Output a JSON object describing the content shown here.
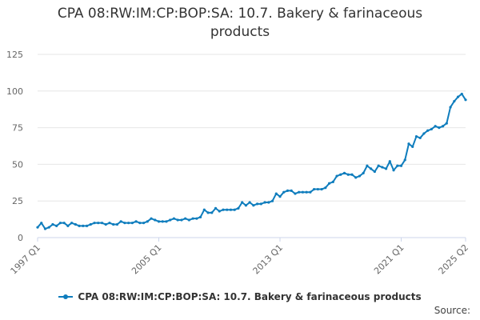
{
  "chart_data": {
    "type": "line",
    "title_line1": "CPA 08:RW:IM:CP:BOP:SA: 10.7. Bakery & farinaceous",
    "title_line2": "products",
    "xlabel": "",
    "ylabel": "",
    "ylim": [
      0,
      125
    ],
    "y_ticks": [
      0,
      25,
      50,
      75,
      100,
      125
    ],
    "x_ticks": [
      {
        "index": 0,
        "label": "1997 Q1"
      },
      {
        "index": 32,
        "label": "2005 Q1"
      },
      {
        "index": 64,
        "label": "2013 Q1"
      },
      {
        "index": 96,
        "label": "2021 Q1"
      },
      {
        "index": 113,
        "label": "2025 Q2"
      }
    ],
    "grid": true,
    "legend_position": "bottom",
    "source_label": "Source:",
    "color": "#0f7dbd",
    "series": [
      {
        "name": "CPA 08:RW:IM:CP:BOP:SA: 10.7. Bakery & farinaceous products",
        "values": [
          7,
          10,
          6,
          7,
          9,
          8,
          10,
          10,
          8,
          10,
          9,
          8,
          8,
          8,
          9,
          10,
          10,
          10,
          9,
          10,
          9,
          9,
          11,
          10,
          10,
          10,
          11,
          10,
          10,
          11,
          13,
          12,
          11,
          11,
          11,
          12,
          13,
          12,
          12,
          13,
          12,
          13,
          13,
          14,
          19,
          17,
          17,
          20,
          18,
          19,
          19,
          19,
          19,
          20,
          24,
          22,
          24,
          22,
          23,
          23,
          24,
          24,
          25,
          30,
          28,
          31,
          32,
          32,
          30,
          31,
          31,
          31,
          31,
          33,
          33,
          33,
          34,
          37,
          38,
          42,
          43,
          44,
          43,
          43,
          41,
          42,
          44,
          49,
          47,
          45,
          49,
          48,
          47,
          52,
          46,
          49,
          49,
          53,
          64,
          62,
          69,
          68,
          71,
          73,
          74,
          76,
          75,
          76,
          78,
          89,
          93,
          96,
          98,
          94
        ]
      }
    ]
  }
}
